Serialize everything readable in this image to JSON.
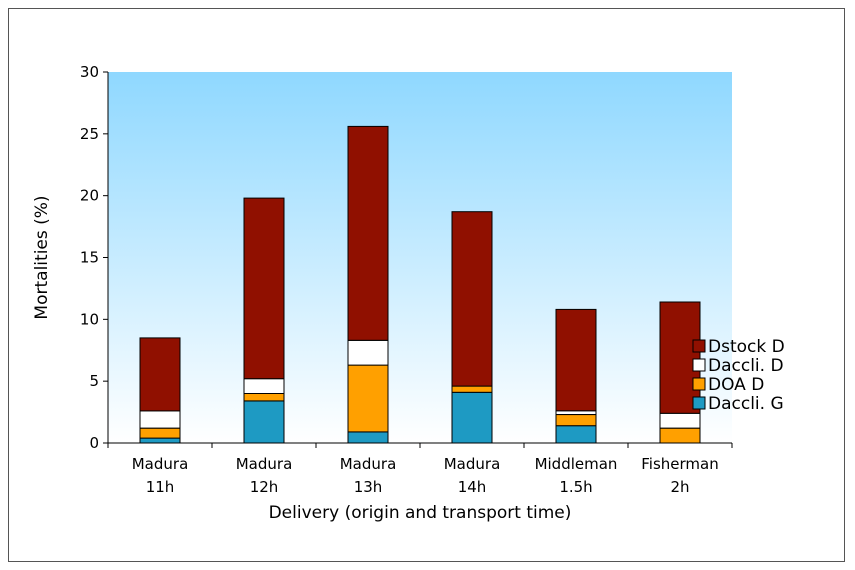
{
  "chart_data": {
    "type": "bar",
    "stacked": true,
    "title": "",
    "xlabel": "Delivery (origin and transport time)",
    "ylabel": "Mortalities (%)",
    "ylim": [
      0,
      30
    ],
    "yticks": [
      0,
      5,
      10,
      15,
      20,
      25,
      30
    ],
    "grid": false,
    "legend_position": "right",
    "categories": [
      [
        "Madura",
        "11h"
      ],
      [
        "Madura",
        "12h"
      ],
      [
        "Madura",
        "13h"
      ],
      [
        "Madura",
        "14h"
      ],
      [
        "Middleman",
        "1.5h"
      ],
      [
        "Fisherman",
        "2h"
      ]
    ],
    "series": [
      {
        "name": "Daccli. G",
        "color": "#1E9AC3",
        "values": [
          0.4,
          3.4,
          0.9,
          4.1,
          1.4,
          0.0
        ]
      },
      {
        "name": "DOA D",
        "color": "#FFA000",
        "values": [
          0.8,
          0.6,
          5.4,
          0.5,
          0.9,
          1.2
        ]
      },
      {
        "name": "Daccli. D",
        "color": "#FFFFFF",
        "values": [
          1.4,
          1.2,
          2.0,
          0.0,
          0.3,
          1.2
        ]
      },
      {
        "name": "Dstock D",
        "color": "#901000",
        "values": [
          5.9,
          14.6,
          17.3,
          14.1,
          8.2,
          9.0
        ]
      }
    ],
    "legend_order": [
      "Dstock D",
      "Daccli. D",
      "DOA D",
      "Daccli. G"
    ]
  }
}
